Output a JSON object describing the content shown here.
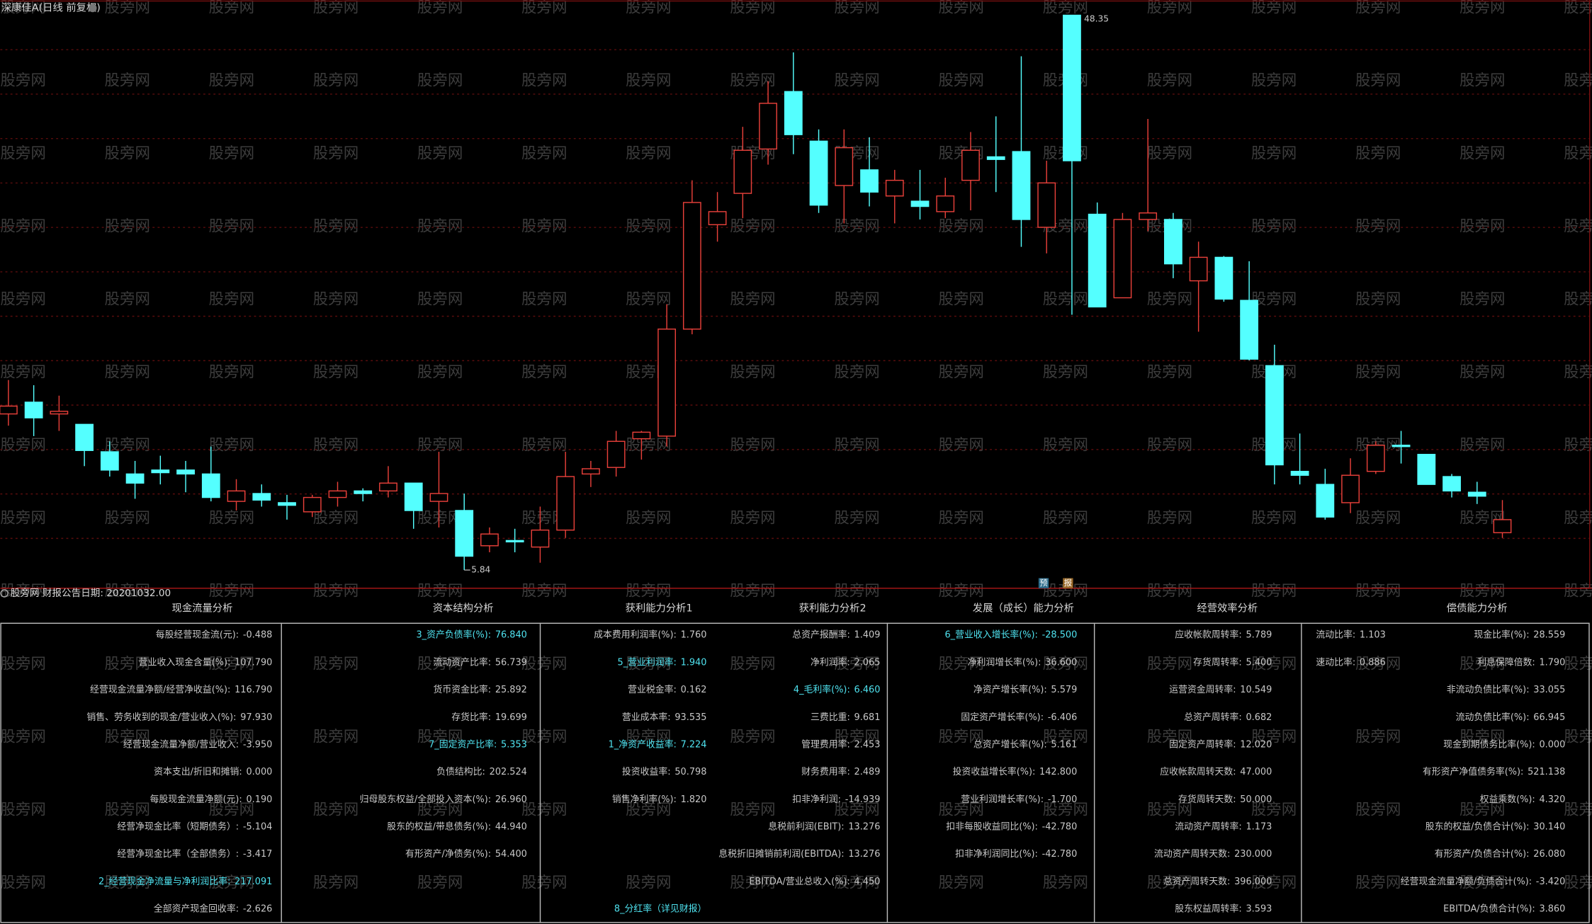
{
  "title": "深康佳A(日线 前复权)",
  "watermark": "股旁网",
  "chart_data": {
    "type": "candlestick",
    "open": [
      17.8,
      18.7,
      17.8,
      17.0,
      14.9,
      13.2,
      13.5,
      13.5,
      13.2,
      11.1,
      11.7,
      11.0,
      10.3,
      11.4,
      11.9,
      11.9,
      12.5,
      11.1,
      10.4,
      7.7,
      8.1,
      7.6,
      8.9,
      13.2,
      13.7,
      15.9,
      16.1,
      24.3,
      32.3,
      34.7,
      38.1,
      42.5,
      38.7,
      35.3,
      36.5,
      34.5,
      34.1,
      33.3,
      35.7,
      37.5,
      37.9,
      32.1,
      48.35,
      33.1,
      26.7,
      32.7,
      32.7,
      28.0,
      29.8,
      26.5,
      21.5,
      13.4,
      12.4,
      11.0,
      13.4,
      15.4,
      14.7,
      13.0,
      11.8,
      8.7
    ],
    "high": [
      20.4,
      20.0,
      19.2,
      17.0,
      15.7,
      14.2,
      14.6,
      14.2,
      15.3,
      12.8,
      12.4,
      11.6,
      11.6,
      12.6,
      12.1,
      13.8,
      12.5,
      14.9,
      11.7,
      9.1,
      9.0,
      10.7,
      14.9,
      14.2,
      16.5,
      16.5,
      26.2,
      35.7,
      34.8,
      39.8,
      43.3,
      45.5,
      39.6,
      39.6,
      39.0,
      36.5,
      36.5,
      35.9,
      39.4,
      40.6,
      45.2,
      37.2,
      48.35,
      34.0,
      33.2,
      40.4,
      33.2,
      31.0,
      29.9,
      29.5,
      23.1,
      16.3,
      13.6,
      14.4,
      15.7,
      16.5,
      14.7,
      13.2,
      12.6,
      11.2
    ],
    "low": [
      16.9,
      16.1,
      16.5,
      13.8,
      13.0,
      11.3,
      12.4,
      11.8,
      11.1,
      10.4,
      10.7,
      9.7,
      9.9,
      10.7,
      11.1,
      11.4,
      9.0,
      9.1,
      5.84,
      7.2,
      7.2,
      6.4,
      8.3,
      12.2,
      13.0,
      14.3,
      15.3,
      23.9,
      31.0,
      32.8,
      36.9,
      37.7,
      33.2,
      32.4,
      33.7,
      32.4,
      32.7,
      32.8,
      33.4,
      34.8,
      30.6,
      30.1,
      25.4,
      26.0,
      26.7,
      31.8,
      28.2,
      24.1,
      26.4,
      21.9,
      12.4,
      12.4,
      9.7,
      10.2,
      13.2,
      14.0,
      12.4,
      11.4,
      10.9,
      8.3
    ],
    "close": [
      18.4,
      17.5,
      18.0,
      15.0,
      13.5,
      12.5,
      13.3,
      13.2,
      11.4,
      11.9,
      11.2,
      10.8,
      11.4,
      11.9,
      11.7,
      12.5,
      10.4,
      11.7,
      6.9,
      8.6,
      8.0,
      8.9,
      13.0,
      13.6,
      15.7,
      16.4,
      24.3,
      34.0,
      33.3,
      38.0,
      41.6,
      39.2,
      33.8,
      38.2,
      34.8,
      35.7,
      33.7,
      34.5,
      38.0,
      37.3,
      32.7,
      35.5,
      37.2,
      26.0,
      32.7,
      33.2,
      29.3,
      29.8,
      26.6,
      22.0,
      13.9,
      13.1,
      9.9,
      13.1,
      15.4,
      15.3,
      12.4,
      11.9,
      11.5,
      9.7
    ],
    "up_color": "#e8403a",
    "down_color": "#54ffff"
  },
  "report_note": "股旁网 财报公告日期: 20201032.00",
  "markers": [
    "预",
    "报"
  ],
  "sections": [
    {
      "title": "现金流量分析",
      "columns": [
        [
          {
            "label": "每股经营现金流(元):",
            "value": "-0.488"
          },
          {
            "label": "营业收入现金含量(%):",
            "value": "107.790"
          },
          {
            "label": "经营现金流量净额/经营净收益(%):",
            "value": "116.790"
          },
          {
            "label": "销售、劳务收到的现金/营业收入(%):",
            "value": "97.930"
          },
          {
            "label": "经营现金流量净额/营业收入:",
            "value": "-3.950"
          },
          {
            "label": "资本支出/折旧和摊销:",
            "value": "0.000"
          },
          {
            "label": "每股现金流量净额(元):",
            "value": "0.190"
          },
          {
            "label": "经营净现金比率（短期债务）:",
            "value": "-5.104"
          },
          {
            "label": "经营净现金比率（全部债务）:",
            "value": "-3.417"
          },
          {
            "label": "2_经营现金净流量与净利润比率:",
            "value": "217.091",
            "highlight": true
          },
          {
            "label": "全部资产现金回收率:",
            "value": "-2.626"
          }
        ]
      ]
    },
    {
      "title": "资本结构分析",
      "columns": [
        [
          {
            "label": "3_资产负债率(%):",
            "value": "76.840",
            "highlight": true
          },
          {
            "label": "流动资产比率:",
            "value": "56.739"
          },
          {
            "label": "货币资金比率:",
            "value": "25.892"
          },
          {
            "label": "存货比率:",
            "value": "19.699"
          },
          {
            "label": "7_固定资产比率:",
            "value": "5.353",
            "highlight": true
          },
          {
            "label": "负债结构比:",
            "value": "202.524"
          },
          {
            "label": "归母股东权益/全部投入资本(%):",
            "value": "26.960"
          },
          {
            "label": "股东的权益/带息债务(%):",
            "value": "44.940"
          },
          {
            "label": "有形资产/净债务(%):",
            "value": "54.400"
          }
        ]
      ]
    },
    {
      "title": "获利能力分析1",
      "columns": [
        [
          {
            "label": "成本费用利润率(%):",
            "value": "1.760"
          },
          {
            "label": "5_营业利润率:",
            "value": "1.940",
            "highlight": true
          },
          {
            "label": "营业税金率:",
            "value": "0.162"
          },
          {
            "label": "营业成本率:",
            "value": "93.535"
          },
          {
            "label": "1_净资产收益率:",
            "value": "7.224",
            "highlight": true
          },
          {
            "label": "投资收益率:",
            "value": "50.798"
          },
          {
            "label": "销售净利率(%):",
            "value": "1.820"
          },
          null,
          null,
          null,
          {
            "label": "8_分红率（详见财报）",
            "highlight": true
          }
        ]
      ]
    },
    {
      "title": "获利能力分析2",
      "columns": [
        [
          {
            "label": "总资产报酬率:",
            "value": "1.409"
          },
          {
            "label": "净利润率:",
            "value": "2.065"
          },
          {
            "label": "4_毛利率(%):",
            "value": "6.460",
            "highlight": true
          },
          {
            "label": "三费比重:",
            "value": "9.681"
          },
          {
            "label": "管理费用率:",
            "value": "2.453"
          },
          {
            "label": "财务费用率:",
            "value": "2.489"
          },
          {
            "label": "扣非净利润:",
            "value": "-14.939"
          },
          {
            "label": "息税前利润(EBIT):",
            "value": "13.276"
          },
          {
            "label": "息税折旧摊销前利润(EBITDA):",
            "value": "13.276"
          },
          {
            "label": "EBITDA/营业总收入(%):",
            "value": "4.450"
          }
        ]
      ]
    },
    {
      "title": "发展（成长）能力分析",
      "columns": [
        [
          {
            "label": "6_营业收入增长率(%):",
            "value": "-28.500",
            "highlight": true
          },
          {
            "label": "净利润增长率(%):",
            "value": "36.600"
          },
          {
            "label": "净资产增长率(%):",
            "value": "5.579"
          },
          {
            "label": "固定资产增长率(%):",
            "value": "-6.406"
          },
          {
            "label": "总资产增长率(%):",
            "value": "5.161"
          },
          {
            "label": "投资收益增长率(%):",
            "value": "142.800"
          },
          {
            "label": "营业利润增长率(%):",
            "value": "-1.700"
          },
          {
            "label": "扣非每股收益同比(%):",
            "value": "-42.780"
          },
          {
            "label": "扣非净利润同比(%):",
            "value": "-42.780"
          }
        ]
      ]
    },
    {
      "title": "经营效率分析",
      "columns": [
        [
          {
            "label": "应收帐款周转率:",
            "value": "5.789"
          },
          {
            "label": "存货周转率:",
            "value": "5.400"
          },
          {
            "label": "运营资金周转率:",
            "value": "10.549"
          },
          {
            "label": "总资产周转率:",
            "value": "0.682"
          },
          {
            "label": "固定资产周转率:",
            "value": "12.020"
          },
          {
            "label": "应收帐款周转天数:",
            "value": "47.000"
          },
          {
            "label": "存货周转天数:",
            "value": "50.000"
          },
          {
            "label": "流动资产周转率:",
            "value": "1.173"
          },
          {
            "label": "流动资产周转天数:",
            "value": "230.000"
          },
          {
            "label": "总资产周转天数:",
            "value": "396.000"
          },
          {
            "label": "股东权益周转率:",
            "value": "3.593"
          }
        ]
      ]
    },
    {
      "title": "偿债能力分析",
      "columns": [
        [
          {
            "label": "流动比率:",
            "value": "1.103"
          },
          {
            "label": "速动比率:",
            "value": "0.886"
          }
        ],
        [
          {
            "label": "现金比率(%):",
            "value": "28.559"
          },
          {
            "label": "利息保障倍数:",
            "value": "1.790"
          },
          {
            "label": "非流动负债比率(%):",
            "value": "33.055"
          },
          {
            "label": "流动负债比率(%):",
            "value": "66.945"
          },
          {
            "label": "现金到期债务比率(%):",
            "value": "0.000"
          },
          {
            "label": "有形资产净值债务率(%):",
            "value": "521.138"
          },
          {
            "label": "权益乘数(%):",
            "value": "4.320"
          },
          {
            "label": "股东的权益/负债合计(%):",
            "value": "30.140"
          },
          {
            "label": "有形资产/负债合计(%):",
            "value": "26.080"
          },
          {
            "label": "经营现金流量净额/负债合计(%):",
            "value": "-3.420"
          },
          {
            "label": "EBITDA/负债合计(%):",
            "value": "3.860"
          }
        ]
      ]
    }
  ]
}
